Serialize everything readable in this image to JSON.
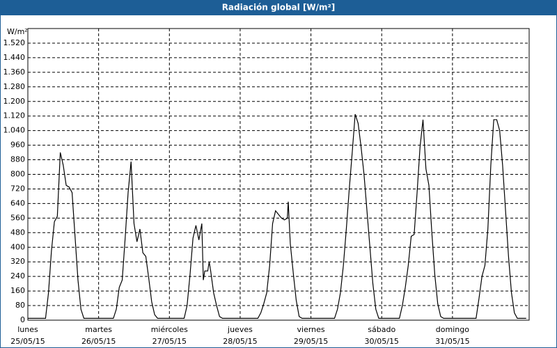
{
  "window_title": "Radiación global [W/m²]",
  "chart_data": {
    "type": "line",
    "y_label": "W/m²",
    "x": [
      0,
      6,
      7,
      8,
      9,
      10,
      11,
      12,
      13,
      14,
      15,
      16,
      17,
      18,
      19,
      24,
      29,
      30,
      31,
      32,
      33,
      34,
      35,
      36,
      37,
      38,
      39,
      40,
      41,
      42,
      43,
      44,
      48,
      53,
      54,
      55,
      56,
      57,
      58,
      59,
      59.5,
      60,
      61,
      61.5,
      62,
      63,
      64,
      65,
      66,
      72,
      78,
      79,
      80,
      81,
      82,
      83,
      84,
      85,
      86,
      87,
      88,
      88.3,
      89,
      90,
      91,
      92,
      93,
      96,
      104,
      105,
      106,
      107,
      108,
      109,
      110,
      111,
      112,
      113,
      114,
      115,
      116,
      117,
      118,
      119,
      120,
      126,
      127,
      128,
      129,
      130,
      131,
      132,
      133,
      134,
      135,
      136,
      137,
      138,
      139,
      140,
      141,
      144,
      152,
      153,
      154,
      155,
      156,
      157,
      158,
      159,
      160,
      161,
      162,
      163,
      164,
      165,
      166,
      169
    ],
    "values": [
      10,
      10,
      150,
      380,
      540,
      570,
      920,
      850,
      740,
      730,
      700,
      460,
      220,
      60,
      10,
      10,
      10,
      60,
      180,
      220,
      450,
      700,
      870,
      530,
      430,
      500,
      370,
      350,
      230,
      100,
      30,
      10,
      10,
      10,
      80,
      250,
      450,
      520,
      440,
      530,
      220,
      270,
      270,
      320,
      270,
      150,
      80,
      20,
      10,
      10,
      10,
      40,
      90,
      150,
      300,
      530,
      600,
      580,
      560,
      550,
      560,
      650,
      420,
      260,
      110,
      20,
      10,
      10,
      10,
      60,
      150,
      300,
      500,
      720,
      920,
      1130,
      1080,
      950,
      800,
      600,
      400,
      200,
      60,
      10,
      10,
      10,
      80,
      180,
      300,
      460,
      470,
      700,
      950,
      1100,
      830,
      740,
      480,
      250,
      90,
      20,
      10,
      10,
      10,
      120,
      240,
      300,
      500,
      850,
      1100,
      1100,
      1040,
      850,
      600,
      350,
      150,
      40,
      10,
      10
    ],
    "color": "#000000",
    "xlim": [
      0,
      170
    ],
    "xticks": [
      {
        "value": 0,
        "label": "lunes",
        "date": "25/05/15"
      },
      {
        "value": 24,
        "label": "martes",
        "date": "26/05/15"
      },
      {
        "value": 48,
        "label": "miércoles",
        "date": "27/05/15"
      },
      {
        "value": 72,
        "label": "jueves",
        "date": "28/05/15"
      },
      {
        "value": 96,
        "label": "viernes",
        "date": "29/05/15"
      },
      {
        "value": 120,
        "label": "sábado",
        "date": "30/05/15"
      },
      {
        "value": 144,
        "label": "domingo",
        "date": "31/05/15"
      }
    ],
    "ylim": [
      0,
      1600
    ],
    "yticks": [
      0,
      80,
      160,
      240,
      320,
      400,
      480,
      560,
      640,
      720,
      800,
      880,
      960,
      {
        "value": 1040,
        "label": "1.040"
      },
      {
        "value": 1120,
        "label": "1.120"
      },
      {
        "value": 1200,
        "label": "1.200"
      },
      {
        "value": 1280,
        "label": "1.280"
      },
      {
        "value": 1360,
        "label": "1.360"
      },
      {
        "value": 1440,
        "label": "1.440"
      },
      {
        "value": 1520,
        "label": "1.520"
      }
    ],
    "grid": true
  }
}
